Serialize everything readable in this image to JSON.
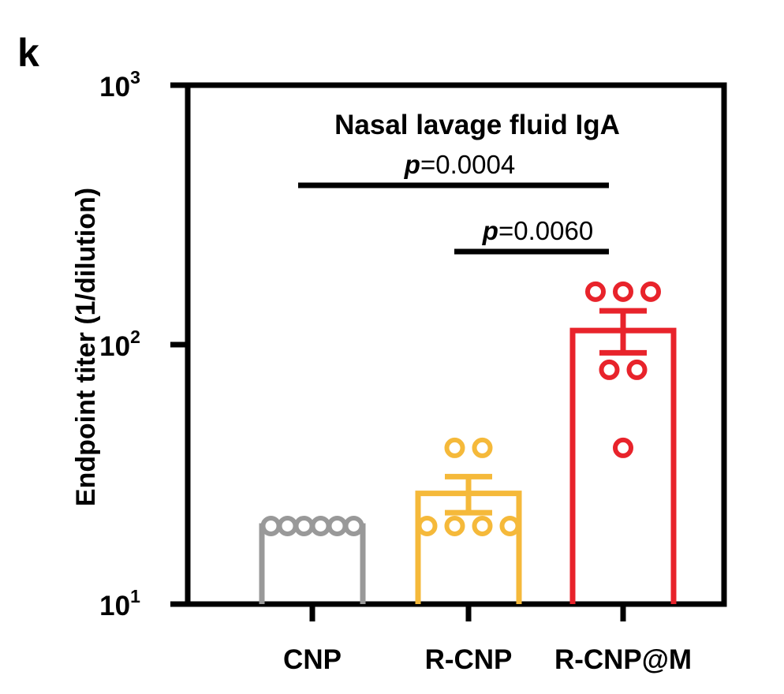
{
  "panel_label": "k",
  "chart_data": {
    "type": "bar",
    "title": "Nasal lavage fluid IgA",
    "ylabel": "Endpoint titer (1/dilution)",
    "xlabel": "",
    "yscale": "log",
    "ylim": [
      10,
      1000
    ],
    "yticks": [
      {
        "value": 10,
        "base": "10",
        "exp": "1"
      },
      {
        "value": 100,
        "base": "10",
        "exp": "2"
      },
      {
        "value": 1000,
        "base": "10",
        "exp": "3"
      }
    ],
    "categories": [
      "CNP",
      "R-CNP",
      "R-CNP@M"
    ],
    "colors": [
      "#999999",
      "#f5b93a",
      "#e8232b"
    ],
    "values": [
      20,
      26.7,
      113.3
    ],
    "error_upper": [
      20,
      31,
      135
    ],
    "error_lower": [
      20,
      22.5,
      93
    ],
    "points": [
      [
        20,
        20,
        20,
        20,
        20,
        20
      ],
      [
        40,
        40,
        20,
        20,
        20,
        20
      ],
      [
        160,
        160,
        160,
        80,
        80,
        40
      ]
    ],
    "significance": [
      {
        "from": 0,
        "to": 2,
        "p_symbol": "p",
        "p_value": "=0.0004"
      },
      {
        "from": 1,
        "to": 2,
        "p_symbol": "p",
        "p_value": "=0.0060"
      }
    ],
    "grid": false,
    "legend": "none"
  }
}
